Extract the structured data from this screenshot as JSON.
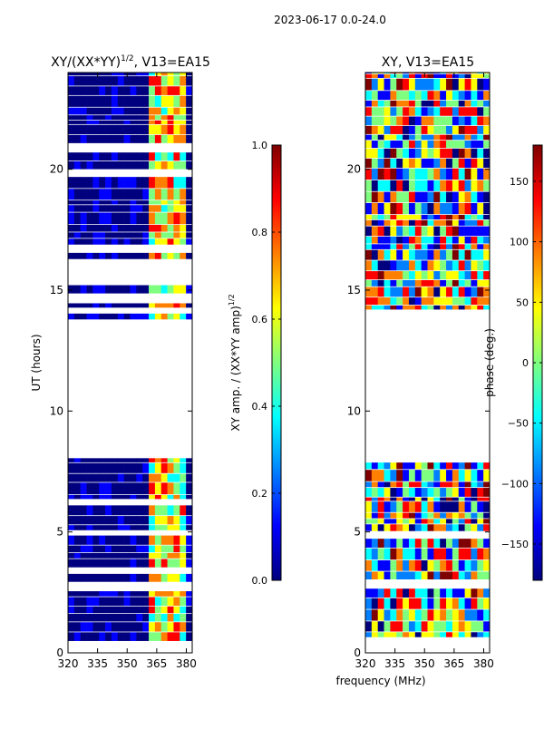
{
  "figure_title": "2023-06-17 0.0-24.0",
  "shared_xlabel": "frequency (MHz)",
  "colors": {
    "jet": [
      "#00007f",
      "#0000ff",
      "#007fff",
      "#00ffff",
      "#7fff7f",
      "#ffff00",
      "#ff7f00",
      "#ff0000",
      "#7f0000"
    ],
    "axis": "#000000",
    "background": "#ffffff"
  },
  "chart_data": [
    {
      "type": "heatmap",
      "title_base": "XY/(XX*YY)",
      "title_exp": "1/2",
      "title_suffix": ", V13=EA15",
      "ylabel": "UT (hours)",
      "xlim": [
        320,
        383
      ],
      "ylim": [
        0,
        24
      ],
      "x_ticks": [
        320,
        335,
        350,
        365,
        380
      ],
      "y_ticks": [
        0,
        5,
        10,
        15,
        20
      ],
      "x_tick_labels": [
        "320",
        "335",
        "350",
        "365",
        "380"
      ],
      "y_tick_labels": [
        "0",
        "5",
        "10",
        "15",
        "20"
      ],
      "data_ranges_hours": [
        [
          0.5,
          8.05
        ],
        [
          13.8,
          24.0
        ]
      ],
      "gap_hours": [
        8.05,
        13.8
      ],
      "bright_channel_band_mhz": [
        360,
        380
      ],
      "colorbar": {
        "label_base": "XY amp. / (XX*YY amp)",
        "label_exp": "1/2",
        "range": [
          0.0,
          1.0
        ],
        "ticks": [
          0.0,
          0.2,
          0.4,
          0.6,
          0.8,
          1.0
        ],
        "tick_labels": [
          "0.0",
          "0.2",
          "0.4",
          "0.6",
          "0.8",
          "1.0"
        ]
      }
    },
    {
      "type": "heatmap",
      "title": "XY, V13=EA15",
      "xlim": [
        320,
        383
      ],
      "ylim": [
        0,
        24
      ],
      "x_ticks": [
        320,
        335,
        350,
        365,
        380
      ],
      "y_ticks": [
        0,
        5,
        10,
        15,
        20
      ],
      "x_tick_labels": [
        "320",
        "335",
        "350",
        "365",
        "380"
      ],
      "y_tick_labels": [
        "0",
        "5",
        "10",
        "15",
        "20"
      ],
      "data_ranges_hours": [
        [
          0.5,
          8.05
        ],
        [
          13.8,
          24.0
        ]
      ],
      "gap_hours": [
        8.05,
        13.8
      ],
      "colorbar": {
        "label": "phase (deg.)",
        "range": [
          -180,
          180
        ],
        "ticks": [
          -150,
          -100,
          -50,
          0,
          50,
          100,
          150
        ],
        "tick_labels": [
          "−150",
          "−100",
          "−50",
          "0",
          "50",
          "100",
          "150"
        ]
      }
    }
  ]
}
